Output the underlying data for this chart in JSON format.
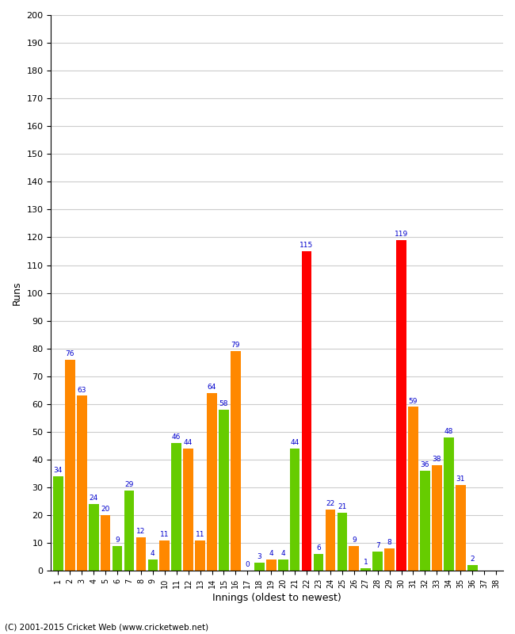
{
  "innings": [
    1,
    2,
    3,
    4,
    5,
    6,
    7,
    8,
    9,
    10,
    11,
    12,
    13,
    14,
    15,
    16,
    17,
    18,
    19,
    20,
    21,
    22,
    23,
    24,
    25,
    26,
    27,
    28,
    29,
    30,
    31,
    32,
    33,
    34,
    35,
    36,
    37,
    38
  ],
  "values": [
    34,
    76,
    63,
    24,
    20,
    9,
    29,
    12,
    4,
    11,
    46,
    44,
    11,
    64,
    58,
    79,
    0,
    3,
    4,
    4,
    44,
    115,
    6,
    22,
    21,
    9,
    1,
    7,
    8,
    119,
    59,
    36,
    38,
    48,
    31,
    2,
    0,
    0
  ],
  "colors": [
    "#66cc00",
    "#ff8800",
    "#ff8800",
    "#66cc00",
    "#ff8800",
    "#66cc00",
    "#66cc00",
    "#ff8800",
    "#66cc00",
    "#ff8800",
    "#66cc00",
    "#ff8800",
    "#ff8800",
    "#ff8800",
    "#66cc00",
    "#ff8800",
    "#66cc00",
    "#66cc00",
    "#ff8800",
    "#66cc00",
    "#66cc00",
    "#ff0000",
    "#66cc00",
    "#ff8800",
    "#66cc00",
    "#ff8800",
    "#66cc00",
    "#66cc00",
    "#ff8800",
    "#ff0000",
    "#ff8800",
    "#66cc00",
    "#ff8800",
    "#66cc00",
    "#ff8800",
    "#66cc00",
    "#ff8800",
    "#66cc00"
  ],
  "labels": [
    34,
    76,
    63,
    24,
    20,
    9,
    29,
    12,
    4,
    11,
    46,
    44,
    11,
    64,
    58,
    79,
    0,
    3,
    4,
    4,
    44,
    115,
    6,
    22,
    21,
    9,
    1,
    7,
    8,
    119,
    59,
    36,
    38,
    48,
    31,
    2,
    null,
    null
  ],
  "xlabel": "Innings (oldest to newest)",
  "ylabel": "Runs",
  "ylim": [
    0,
    200
  ],
  "yticks": [
    0,
    10,
    20,
    30,
    40,
    50,
    60,
    70,
    80,
    90,
    100,
    110,
    120,
    130,
    140,
    150,
    160,
    170,
    180,
    190,
    200
  ],
  "footer": "(C) 2001-2015 Cricket Web (www.cricketweb.net)",
  "background_color": "#ffffff",
  "label_color": "#0000cc",
  "label_fontsize": 6.5
}
